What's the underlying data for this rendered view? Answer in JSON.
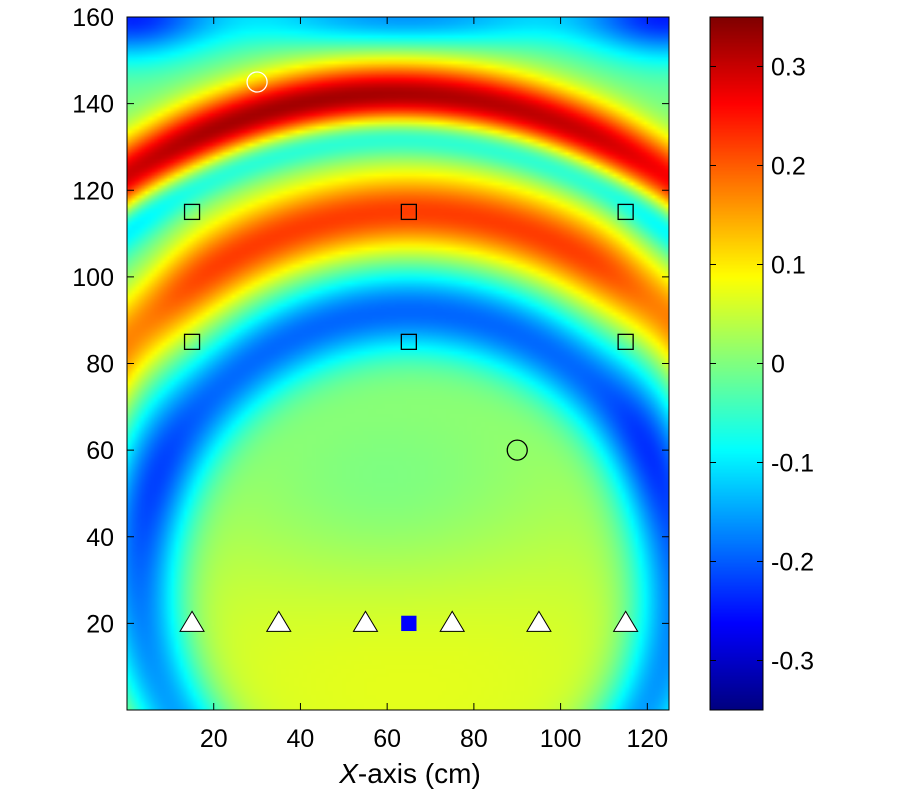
{
  "chart_data": {
    "type": "heatmap",
    "title": "",
    "xlabel_italic": "X",
    "xlabel_rest": "-axis (cm)",
    "ylabel": "",
    "xlim": [
      0,
      125
    ],
    "ylim": [
      0,
      160
    ],
    "x_ticks": [
      20,
      40,
      60,
      80,
      100,
      120
    ],
    "y_ticks": [
      20,
      40,
      60,
      80,
      100,
      120,
      140,
      160
    ],
    "colorbar": {
      "colormap": "jet",
      "clim": [
        -0.35,
        0.35
      ],
      "ticks": [
        0.3,
        0.2,
        0.1,
        0,
        -0.1,
        -0.2,
        -0.3
      ],
      "tick_labels": [
        "0.3",
        "0.2",
        "0.1",
        "0",
        "-0.1",
        "-0.2",
        "-0.3"
      ]
    },
    "field_features": [
      {
        "feature": "arc",
        "center": [
          62,
          30
        ],
        "radius": 112,
        "sigma": 5.5,
        "amplitude": 0.33,
        "x_spread": 75
      },
      {
        "feature": "arc",
        "center": [
          65,
          30
        ],
        "radius": 85,
        "sigma": 6.5,
        "amplitude": 0.22
      },
      {
        "feature": "arc",
        "center": [
          65,
          30
        ],
        "radius": 62,
        "sigma": 7,
        "amplitude": -0.2
      },
      {
        "feature": "arc",
        "center": [
          62,
          30
        ],
        "radius": 103,
        "sigma": 3.5,
        "amplitude": -0.13
      },
      {
        "feature": "blob",
        "center": [
          64,
          8
        ],
        "sigma": [
          75,
          40
        ],
        "amplitude": 0.07
      },
      {
        "feature": "blob",
        "center": [
          60,
          48
        ],
        "sigma": [
          25,
          15
        ],
        "amplitude": -0.04
      },
      {
        "feature": "blob",
        "center": [
          64,
          160
        ],
        "sigma": [
          30,
          5
        ],
        "amplitude": -0.16
      },
      {
        "feature": "blob",
        "center": [
          0,
          160
        ],
        "sigma": [
          14,
          7
        ],
        "amplitude": -0.22
      },
      {
        "feature": "blob",
        "center": [
          125,
          160
        ],
        "sigma": [
          14,
          7
        ],
        "amplitude": -0.22
      },
      {
        "feature": "blob",
        "center": [
          2,
          72
        ],
        "sigma": [
          8,
          35
        ],
        "amplitude": -0.06
      },
      {
        "feature": "blob",
        "center": [
          123,
          72
        ],
        "sigma": [
          8,
          35
        ],
        "amplitude": -0.06
      }
    ],
    "markers": [
      {
        "name": "circle-marker",
        "shape": "circle",
        "x": 30,
        "y": 145,
        "stroke": "#ffffff",
        "fill": "none"
      },
      {
        "name": "circle-marker",
        "shape": "circle",
        "x": 90,
        "y": 60,
        "stroke": "#000000",
        "fill": "none"
      },
      {
        "name": "square-marker",
        "shape": "square",
        "x": 15,
        "y": 115,
        "stroke": "#000000",
        "fill": "none"
      },
      {
        "name": "square-marker",
        "shape": "square",
        "x": 65,
        "y": 115,
        "stroke": "#000000",
        "fill": "none"
      },
      {
        "name": "square-marker",
        "shape": "square",
        "x": 115,
        "y": 115,
        "stroke": "#000000",
        "fill": "none"
      },
      {
        "name": "square-marker",
        "shape": "square",
        "x": 15,
        "y": 85,
        "stroke": "#000000",
        "fill": "none"
      },
      {
        "name": "square-marker",
        "shape": "square",
        "x": 65,
        "y": 85,
        "stroke": "#000000",
        "fill": "none"
      },
      {
        "name": "square-marker",
        "shape": "square",
        "x": 115,
        "y": 85,
        "stroke": "#000000",
        "fill": "none"
      },
      {
        "name": "triangle-marker",
        "shape": "triangle",
        "x": 15,
        "y": 20,
        "stroke": "#000000",
        "fill": "#ffffff"
      },
      {
        "name": "triangle-marker",
        "shape": "triangle",
        "x": 35,
        "y": 20,
        "stroke": "#000000",
        "fill": "#ffffff"
      },
      {
        "name": "triangle-marker",
        "shape": "triangle",
        "x": 55,
        "y": 20,
        "stroke": "#000000",
        "fill": "#ffffff"
      },
      {
        "name": "source-square-marker",
        "shape": "filled-square",
        "x": 65,
        "y": 20,
        "stroke": "#0000ff",
        "fill": "#0000ff"
      },
      {
        "name": "triangle-marker",
        "shape": "triangle",
        "x": 75,
        "y": 20,
        "stroke": "#000000",
        "fill": "#ffffff"
      },
      {
        "name": "triangle-marker",
        "shape": "triangle",
        "x": 95,
        "y": 20,
        "stroke": "#000000",
        "fill": "#ffffff"
      },
      {
        "name": "triangle-marker",
        "shape": "triangle",
        "x": 115,
        "y": 20,
        "stroke": "#000000",
        "fill": "#ffffff"
      }
    ]
  }
}
